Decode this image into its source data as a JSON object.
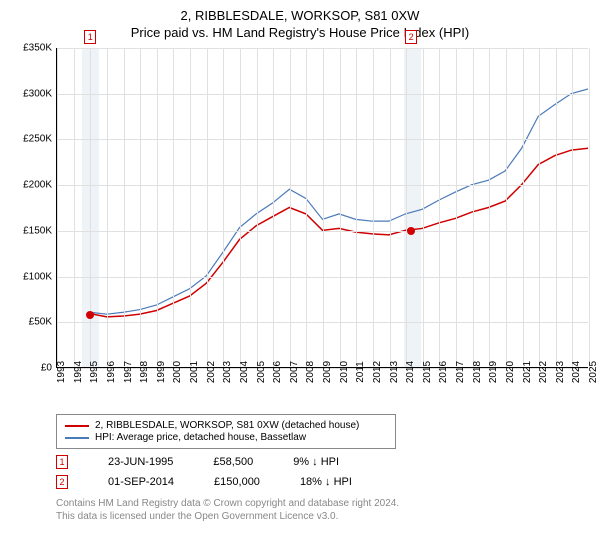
{
  "title": "2, RIBBLESDALE, WORKSOP, S81 0XW",
  "subtitle": "Price paid vs. HM Land Registry's House Price Index (HPI)",
  "chart": {
    "type": "line",
    "ylim": [
      0,
      350000
    ],
    "yticks": [
      0,
      50000,
      100000,
      150000,
      200000,
      250000,
      300000,
      350000
    ],
    "ytick_labels": [
      "£0",
      "£50K",
      "£100K",
      "£150K",
      "£200K",
      "£250K",
      "£300K",
      "£350K"
    ],
    "xlim": [
      1993,
      2025
    ],
    "xticks": [
      1993,
      1994,
      1995,
      1996,
      1997,
      1998,
      1999,
      2000,
      2001,
      2002,
      2003,
      2004,
      2005,
      2006,
      2007,
      2008,
      2009,
      2010,
      2011,
      2012,
      2013,
      2014,
      2015,
      2016,
      2017,
      2018,
      2019,
      2020,
      2021,
      2022,
      2023,
      2024,
      2025
    ],
    "grid_color": "#e0e0e0",
    "background_color": "#ffffff",
    "highlight_zones": [
      [
        1994.5,
        1995.5
      ],
      [
        2013.9,
        2014.9
      ]
    ],
    "highlight_color": "#eef3f7",
    "series": [
      {
        "name": "property",
        "label": "2, RIBBLESDALE, WORKSOP, S81 0XW (detached house)",
        "color": "#d00000",
        "line_width": 1.5,
        "points": [
          [
            1995,
            58500
          ],
          [
            1996,
            55000
          ],
          [
            1997,
            56000
          ],
          [
            1998,
            58000
          ],
          [
            1999,
            62000
          ],
          [
            2000,
            70000
          ],
          [
            2001,
            78000
          ],
          [
            2002,
            92000
          ],
          [
            2003,
            115000
          ],
          [
            2004,
            140000
          ],
          [
            2005,
            155000
          ],
          [
            2006,
            165000
          ],
          [
            2007,
            175000
          ],
          [
            2008,
            168000
          ],
          [
            2009,
            150000
          ],
          [
            2010,
            152000
          ],
          [
            2011,
            148000
          ],
          [
            2012,
            146000
          ],
          [
            2013,
            145000
          ],
          [
            2014,
            150000
          ],
          [
            2015,
            152000
          ],
          [
            2016,
            158000
          ],
          [
            2017,
            163000
          ],
          [
            2018,
            170000
          ],
          [
            2019,
            175000
          ],
          [
            2020,
            182000
          ],
          [
            2021,
            200000
          ],
          [
            2022,
            222000
          ],
          [
            2023,
            232000
          ],
          [
            2024,
            238000
          ],
          [
            2025,
            240000
          ]
        ]
      },
      {
        "name": "hpi",
        "label": "HPI: Average price, detached house, Bassetlaw",
        "color": "#4a7ab8",
        "line_width": 1.2,
        "points": [
          [
            1995,
            60000
          ],
          [
            1996,
            58000
          ],
          [
            1997,
            60000
          ],
          [
            1998,
            63000
          ],
          [
            1999,
            68000
          ],
          [
            2000,
            77000
          ],
          [
            2001,
            86000
          ],
          [
            2002,
            100000
          ],
          [
            2003,
            126000
          ],
          [
            2004,
            153000
          ],
          [
            2005,
            168000
          ],
          [
            2006,
            180000
          ],
          [
            2007,
            195000
          ],
          [
            2008,
            185000
          ],
          [
            2009,
            162000
          ],
          [
            2010,
            168000
          ],
          [
            2011,
            162000
          ],
          [
            2012,
            160000
          ],
          [
            2013,
            160000
          ],
          [
            2014,
            168000
          ],
          [
            2015,
            173000
          ],
          [
            2016,
            183000
          ],
          [
            2017,
            192000
          ],
          [
            2018,
            200000
          ],
          [
            2019,
            205000
          ],
          [
            2020,
            215000
          ],
          [
            2021,
            240000
          ],
          [
            2022,
            275000
          ],
          [
            2023,
            288000
          ],
          [
            2024,
            300000
          ],
          [
            2025,
            305000
          ]
        ]
      }
    ],
    "markers": [
      {
        "n": "1",
        "x": 1995,
        "top_y": 350000,
        "data_y": 58500,
        "color": "#d00000"
      },
      {
        "n": "2",
        "x": 2014.3,
        "top_y": 350000,
        "data_y": 150000,
        "color": "#d00000"
      }
    ]
  },
  "legend": {
    "items": [
      {
        "color": "#d00000",
        "label": "2, RIBBLESDALE, WORKSOP, S81 0XW (detached house)"
      },
      {
        "color": "#4a7ab8",
        "label": "HPI: Average price, detached house, Bassetlaw"
      }
    ]
  },
  "transactions": [
    {
      "n": "1",
      "color": "#d00000",
      "date": "23-JUN-1995",
      "price": "£58,500",
      "diff": "9% ↓ HPI"
    },
    {
      "n": "2",
      "color": "#d00000",
      "date": "01-SEP-2014",
      "price": "£150,000",
      "diff": "18% ↓ HPI"
    }
  ],
  "footer": {
    "line1": "Contains HM Land Registry data © Crown copyright and database right 2024.",
    "line2": "This data is licensed under the Open Government Licence v3.0."
  }
}
